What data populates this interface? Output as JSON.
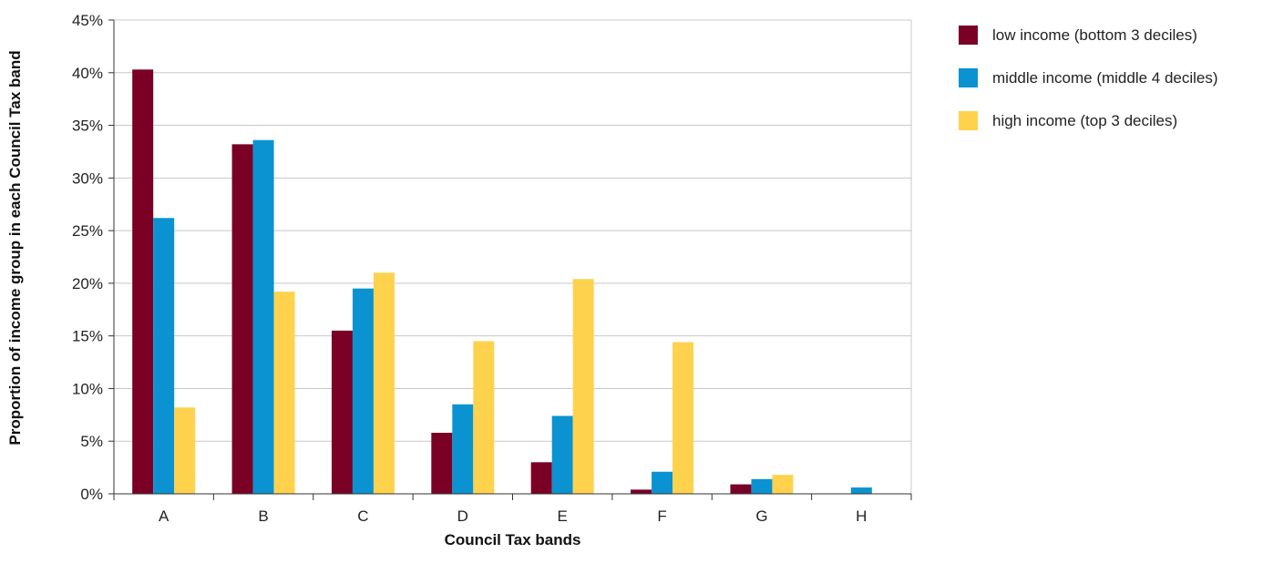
{
  "chart_data": {
    "type": "bar",
    "title": "",
    "xlabel": "Council Tax bands",
    "ylabel": "Proportion of income group in each Council Tax band",
    "categories": [
      "A",
      "B",
      "C",
      "D",
      "E",
      "F",
      "G",
      "H"
    ],
    "ylim": [
      0,
      45
    ],
    "y_ticks": [
      0,
      5,
      10,
      15,
      20,
      25,
      30,
      35,
      40,
      45
    ],
    "y_tick_format": "%",
    "grid": true,
    "legend_position": "right",
    "series": [
      {
        "name": "low income (bottom 3 deciles)",
        "color": "#7a0026",
        "values": [
          40.3,
          33.2,
          15.5,
          5.8,
          3.0,
          0.4,
          0.9,
          0.0
        ]
      },
      {
        "name": "middle income (middle 4 deciles)",
        "color": "#0a93d0",
        "values": [
          26.2,
          33.6,
          19.5,
          8.5,
          7.4,
          2.1,
          1.4,
          0.6
        ]
      },
      {
        "name": "high income (top 3 deciles)",
        "color": "#ffd24d",
        "values": [
          8.2,
          19.2,
          21.0,
          14.5,
          20.4,
          14.4,
          1.8,
          0.0
        ]
      }
    ]
  }
}
